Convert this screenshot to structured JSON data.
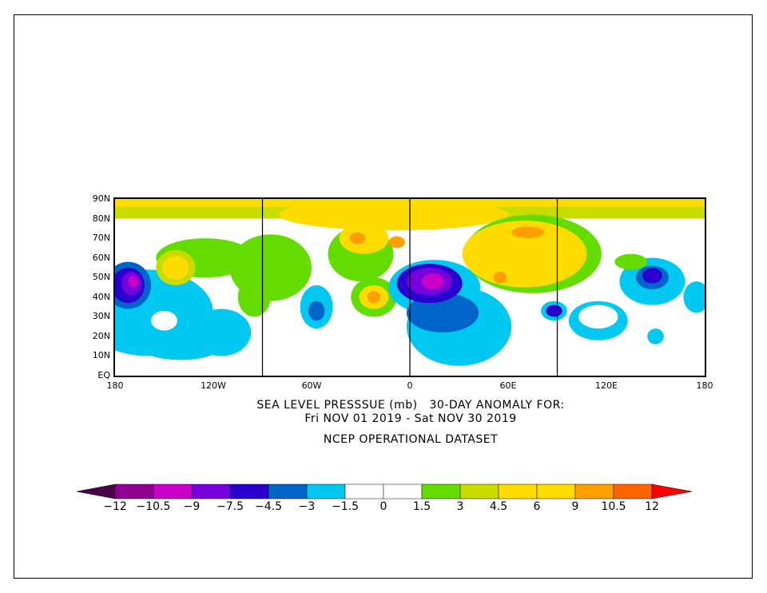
{
  "title": {
    "line1": "SEA LEVEL PRESSSUE (mb)   30-DAY ANOMALY FOR:",
    "line2": "Fri NOV 01 2019 - Sat NOV 30 2019",
    "line3": "NCEP OPERATIONAL DATASET"
  },
  "axes": {
    "lat_labels": [
      "90N",
      "80N",
      "70N",
      "60N",
      "50N",
      "40N",
      "30N",
      "20N",
      "10N",
      "EQ"
    ],
    "lon_labels": [
      "180",
      "120W",
      "60W",
      "0",
      "60E",
      "120E",
      "180"
    ]
  },
  "colorbar": {
    "labels": [
      "-12",
      "-10.5",
      "-9",
      "-7.5",
      "-4.5",
      "-3",
      "-1.5",
      "0",
      "1.5",
      "3",
      "4.5",
      "6",
      "9",
      "10.5",
      "12"
    ],
    "colors": [
      "#4a0048",
      "#900090",
      "#c800c8",
      "#7800dc",
      "#2800d0",
      "#0064c8",
      "#00c8f0",
      "#ffffff",
      "#ffffff",
      "#64dc00",
      "#c8dc00",
      "#ffdc00",
      "#ffdc00",
      "#ffa000",
      "#ff6400",
      "#ff0000"
    ]
  }
}
